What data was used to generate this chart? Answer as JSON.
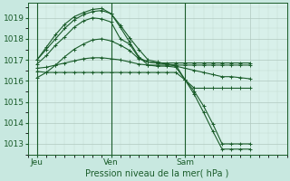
{
  "xlabel": "Pression niveau de la mer( hPa )",
  "ylim": [
    1012.5,
    1019.7
  ],
  "xlim": [
    0,
    56
  ],
  "yticks": [
    1013,
    1014,
    1015,
    1016,
    1017,
    1018,
    1019
  ],
  "xtick_positions": [
    2,
    18,
    34,
    48
  ],
  "xtick_labels": [
    "Jeu",
    "Ven",
    "Sam",
    ""
  ],
  "vlines": [
    2,
    18,
    34
  ],
  "bg_color": "#c8e8e0",
  "plot_bg": "#d8f0ea",
  "grid_color_major": "#b0c8c0",
  "grid_color_minor": "#c0d8d0",
  "line_color": "#1a5c2a",
  "series": [
    [
      2,
      1017.0,
      4,
      1017.5,
      6,
      1018.0,
      8,
      1018.5,
      10,
      1018.9,
      12,
      1019.15,
      14,
      1019.3,
      16,
      1019.35,
      18,
      1019.2,
      20,
      1018.65,
      22,
      1018.05,
      24,
      1017.5,
      26,
      1017.0,
      28,
      1016.9,
      30,
      1016.8,
      32,
      1016.7,
      34,
      1016.6,
      36,
      1016.5,
      38,
      1016.4,
      40,
      1016.3,
      42,
      1016.2,
      44,
      1016.2,
      46,
      1016.15,
      48,
      1016.1
    ],
    [
      2,
      1017.0,
      4,
      1017.6,
      6,
      1018.2,
      8,
      1018.7,
      10,
      1019.05,
      12,
      1019.25,
      14,
      1019.4,
      16,
      1019.45,
      18,
      1019.2,
      20,
      1018.55,
      22,
      1017.85,
      24,
      1017.15,
      26,
      1016.75,
      28,
      1016.7,
      30,
      1016.7,
      32,
      1016.65,
      34,
      1016.05,
      36,
      1015.35,
      38,
      1014.5,
      40,
      1013.6,
      42,
      1012.75,
      44,
      1012.75,
      46,
      1012.75,
      48,
      1012.75
    ],
    [
      2,
      1016.45,
      4,
      1016.4,
      6,
      1016.4,
      8,
      1016.4,
      10,
      1016.4,
      12,
      1016.4,
      14,
      1016.4,
      16,
      1016.4,
      18,
      1016.4,
      20,
      1016.4,
      22,
      1016.4,
      24,
      1016.4,
      26,
      1016.4,
      28,
      1016.4,
      30,
      1016.4,
      32,
      1016.4,
      34,
      1016.05,
      36,
      1015.5,
      38,
      1014.8,
      40,
      1013.95,
      42,
      1013.0,
      44,
      1013.0,
      46,
      1013.0,
      48,
      1013.0
    ],
    [
      2,
      1016.6,
      4,
      1016.65,
      6,
      1016.75,
      8,
      1016.85,
      10,
      1016.95,
      12,
      1017.05,
      14,
      1017.1,
      16,
      1017.1,
      18,
      1017.05,
      20,
      1017.0,
      22,
      1016.9,
      24,
      1016.8,
      26,
      1016.75,
      28,
      1016.75,
      30,
      1016.75,
      32,
      1016.75,
      34,
      1016.75,
      36,
      1016.75,
      38,
      1016.75,
      40,
      1016.75,
      42,
      1016.75,
      44,
      1016.75,
      46,
      1016.75,
      48,
      1016.75
    ],
    [
      2,
      1016.8,
      4,
      1017.2,
      6,
      1017.7,
      8,
      1018.1,
      10,
      1018.55,
      12,
      1018.85,
      14,
      1019.0,
      16,
      1018.95,
      18,
      1018.8,
      20,
      1018.0,
      22,
      1017.75,
      24,
      1017.1,
      26,
      1016.9,
      28,
      1016.85,
      30,
      1016.8,
      32,
      1016.75,
      34,
      1016.05,
      36,
      1015.65,
      38,
      1015.65,
      40,
      1015.65,
      42,
      1015.65,
      44,
      1015.65,
      46,
      1015.65,
      48,
      1015.65
    ],
    [
      2,
      1016.15,
      4,
      1016.4,
      6,
      1016.75,
      8,
      1017.15,
      10,
      1017.5,
      12,
      1017.75,
      14,
      1017.95,
      16,
      1018.0,
      18,
      1017.9,
      20,
      1017.7,
      22,
      1017.45,
      24,
      1017.05,
      26,
      1016.9,
      28,
      1016.85,
      30,
      1016.85,
      32,
      1016.85,
      34,
      1016.85,
      36,
      1016.85,
      38,
      1016.85,
      40,
      1016.85,
      42,
      1016.85,
      44,
      1016.85,
      46,
      1016.85,
      48,
      1016.85
    ]
  ]
}
